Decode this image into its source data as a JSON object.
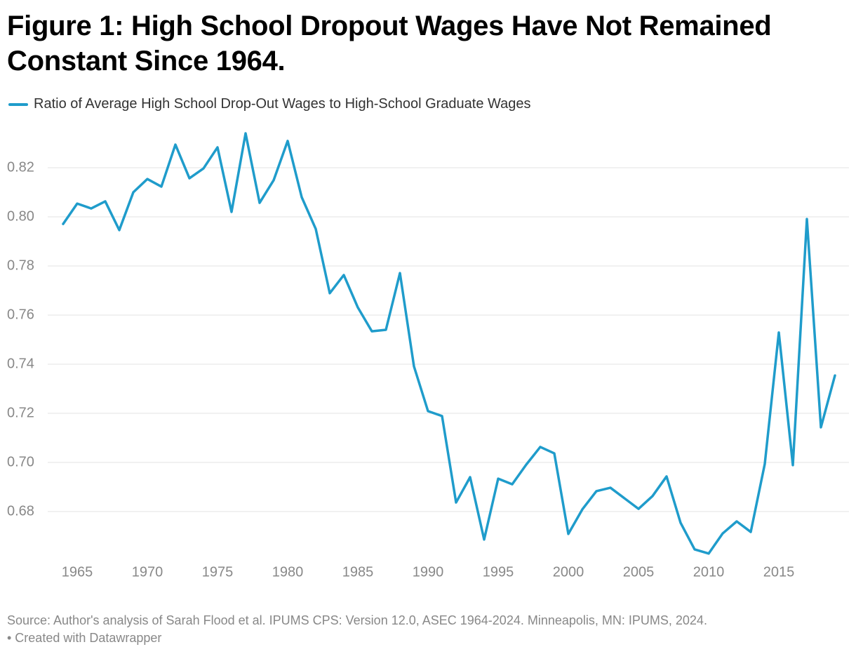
{
  "chart_data": {
    "type": "line",
    "title": "Figure 1: High School Dropout Wages Have Not Remained Constant Since 1964.",
    "x": [
      1964,
      1965,
      1966,
      1967,
      1968,
      1969,
      1970,
      1971,
      1972,
      1973,
      1974,
      1975,
      1976,
      1977,
      1978,
      1979,
      1980,
      1981,
      1982,
      1983,
      1984,
      1985,
      1986,
      1987,
      1988,
      1989,
      1990,
      1991,
      1992,
      1993,
      1994,
      1995,
      1996,
      1997,
      1998,
      1999,
      2000,
      2001,
      2002,
      2003,
      2004,
      2005,
      2006,
      2007,
      2008,
      2009,
      2010,
      2011,
      2012,
      2013,
      2014,
      2015,
      2016,
      2017,
      2018,
      2019
    ],
    "series": [
      {
        "name": "Ratio of Average High School Drop-Out Wages to High-School Graduate Wages",
        "color": "#1f9ccb",
        "values": [
          0.7971,
          0.8054,
          0.8034,
          0.8063,
          0.7946,
          0.81,
          0.8154,
          0.8123,
          0.8294,
          0.8157,
          0.8197,
          0.8283,
          0.802,
          0.834,
          0.8057,
          0.8149,
          0.8309,
          0.808,
          0.7951,
          0.7689,
          0.7763,
          0.7631,
          0.7534,
          0.754,
          0.7771,
          0.7391,
          0.7209,
          0.7189,
          0.6837,
          0.694,
          0.6686,
          0.6934,
          0.6911,
          0.6991,
          0.7063,
          0.7037,
          0.6709,
          0.6809,
          0.6883,
          0.6897,
          0.6854,
          0.6811,
          0.6863,
          0.6943,
          0.6754,
          0.6646,
          0.6629,
          0.6711,
          0.676,
          0.6717,
          0.6994,
          0.7529,
          0.6989,
          0.7991,
          0.7143,
          0.7354
        ]
      }
    ],
    "xlim": [
      1964,
      2019
    ],
    "xticks": [
      1965,
      1970,
      1975,
      1980,
      1985,
      1990,
      1995,
      2000,
      2005,
      2010,
      2015
    ],
    "ylim": [
      0.66,
      0.84
    ],
    "yticks": [
      0.68,
      {
        "value": 0.7,
        "label": "0.70"
      },
      0.72,
      0.74,
      0.76,
      0.78,
      {
        "value": 0.8,
        "label": "0.80"
      },
      0.82
    ],
    "grid": true,
    "source": "Source: Author's analysis of Sarah Flood et al. IPUMS CPS: Version 12.0, ASEC 1964-2024. Minneapolis, MN: IPUMS, 2024.",
    "credit": "• Created with Datawrapper"
  }
}
